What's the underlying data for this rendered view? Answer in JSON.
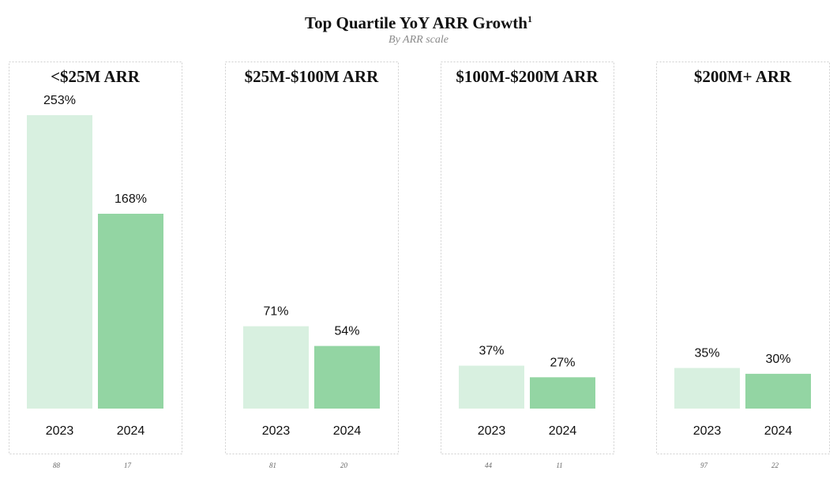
{
  "chart_data": {
    "type": "bar",
    "title": "Top Quartile YoY ARR Growth",
    "title_footnote": "1",
    "subtitle": "By ARR scale",
    "categories": [
      "2023",
      "2024"
    ],
    "unit": "%",
    "ylim": [
      0,
      253
    ],
    "colors": {
      "2023": "#d8f0e0",
      "2024": "#93d5a3"
    },
    "panels": [
      {
        "title": "<$25M ARR",
        "values": [
          253,
          168
        ],
        "counts": [
          "88",
          "17"
        ]
      },
      {
        "title": "$25M-$100M ARR",
        "values": [
          71,
          54
        ],
        "counts": [
          "81",
          "20"
        ]
      },
      {
        "title": "$100M-$200M ARR",
        "values": [
          37,
          27
        ],
        "counts": [
          "44",
          "11"
        ]
      },
      {
        "title": "$200M+ ARR",
        "values": [
          35,
          30
        ],
        "counts": [
          "97",
          "22"
        ]
      }
    ]
  }
}
